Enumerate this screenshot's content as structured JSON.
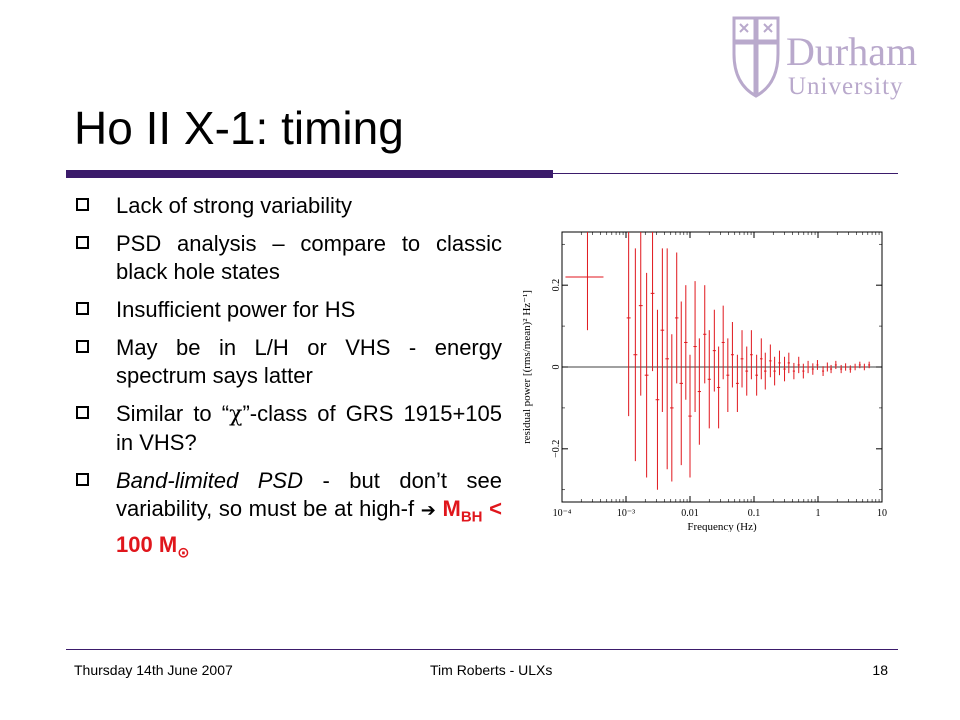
{
  "logo": {
    "line1": "Durham",
    "line2": "University"
  },
  "title": "Ho II X-1: timing",
  "bullets": {
    "b1": "Lack of strong variability",
    "b2": "PSD analysis – compare to classic black hole states",
    "b3": "Insufficient power for HS",
    "b4": "May be in L/H or VHS - energy spectrum says latter",
    "b5_pre": "Similar to “",
    "b5_chi": "χ",
    "b5_post": "”-class of GRS 1915+105 in VHS?",
    "b6_italic": "Band-limited PSD",
    "b6_rest": " - but don’t see variability, so must be at high-f ",
    "b6_arrow": "➔",
    "b6_m": "M",
    "b6_bh": "BH",
    "b6_lt": " < 100 M",
    "b6_sun": "⊙"
  },
  "chart_data": {
    "type": "scatter",
    "xlabel": "Frequency (Hz)",
    "ylabel": "residual power [(rms/mean)² Hz⁻¹]",
    "xscale": "log",
    "xlim": [
      0.0001,
      10
    ],
    "ylim": [
      -0.33,
      0.33
    ],
    "xticks": [
      "10⁻⁴",
      "10⁻³",
      "0.01",
      "0.1",
      "1",
      "10"
    ],
    "yticks": [
      "0.2",
      "0",
      "−0.2"
    ],
    "color": "#e0161c",
    "points": [
      {
        "x": 0.00025,
        "y": 0.22,
        "err": 0.13
      },
      {
        "x": 0.0011,
        "y": 0.12,
        "err": 0.24
      },
      {
        "x": 0.0014,
        "y": 0.03,
        "err": 0.26
      },
      {
        "x": 0.0017,
        "y": 0.15,
        "err": 0.22
      },
      {
        "x": 0.0021,
        "y": -0.02,
        "err": 0.25
      },
      {
        "x": 0.0026,
        "y": 0.18,
        "err": 0.19
      },
      {
        "x": 0.0031,
        "y": -0.08,
        "err": 0.22
      },
      {
        "x": 0.0037,
        "y": 0.09,
        "err": 0.2
      },
      {
        "x": 0.0044,
        "y": 0.02,
        "err": 0.27
      },
      {
        "x": 0.0052,
        "y": -0.1,
        "err": 0.18
      },
      {
        "x": 0.0062,
        "y": 0.12,
        "err": 0.16
      },
      {
        "x": 0.0073,
        "y": -0.04,
        "err": 0.2
      },
      {
        "x": 0.0086,
        "y": 0.06,
        "err": 0.14
      },
      {
        "x": 0.01,
        "y": -0.12,
        "err": 0.15
      },
      {
        "x": 0.012,
        "y": 0.05,
        "err": 0.16
      },
      {
        "x": 0.014,
        "y": -0.06,
        "err": 0.13
      },
      {
        "x": 0.017,
        "y": 0.08,
        "err": 0.12
      },
      {
        "x": 0.02,
        "y": -0.03,
        "err": 0.12
      },
      {
        "x": 0.024,
        "y": 0.04,
        "err": 0.1
      },
      {
        "x": 0.028,
        "y": -0.05,
        "err": 0.1
      },
      {
        "x": 0.033,
        "y": 0.06,
        "err": 0.09
      },
      {
        "x": 0.039,
        "y": -0.02,
        "err": 0.09
      },
      {
        "x": 0.046,
        "y": 0.03,
        "err": 0.08
      },
      {
        "x": 0.055,
        "y": -0.04,
        "err": 0.07
      },
      {
        "x": 0.065,
        "y": 0.02,
        "err": 0.07
      },
      {
        "x": 0.077,
        "y": -0.01,
        "err": 0.06
      },
      {
        "x": 0.091,
        "y": 0.03,
        "err": 0.06
      },
      {
        "x": 0.11,
        "y": -0.02,
        "err": 0.05
      },
      {
        "x": 0.13,
        "y": 0.02,
        "err": 0.05
      },
      {
        "x": 0.15,
        "y": -0.01,
        "err": 0.045
      },
      {
        "x": 0.18,
        "y": 0.015,
        "err": 0.04
      },
      {
        "x": 0.21,
        "y": -0.01,
        "err": 0.035
      },
      {
        "x": 0.25,
        "y": 0.01,
        "err": 0.03
      },
      {
        "x": 0.3,
        "y": -0.005,
        "err": 0.03
      },
      {
        "x": 0.35,
        "y": 0.01,
        "err": 0.025
      },
      {
        "x": 0.42,
        "y": -0.01,
        "err": 0.02
      },
      {
        "x": 0.5,
        "y": 0.005,
        "err": 0.02
      },
      {
        "x": 0.59,
        "y": -0.01,
        "err": 0.018
      },
      {
        "x": 0.7,
        "y": 0.0,
        "err": 0.015
      },
      {
        "x": 0.83,
        "y": -0.005,
        "err": 0.014
      },
      {
        "x": 0.98,
        "y": 0.005,
        "err": 0.012
      },
      {
        "x": 1.2,
        "y": -0.01,
        "err": 0.012
      },
      {
        "x": 1.4,
        "y": 0.0,
        "err": 0.011
      },
      {
        "x": 1.6,
        "y": -0.005,
        "err": 0.01
      },
      {
        "x": 1.9,
        "y": 0.005,
        "err": 0.01
      },
      {
        "x": 2.3,
        "y": -0.005,
        "err": 0.01
      },
      {
        "x": 2.7,
        "y": 0.0,
        "err": 0.009
      },
      {
        "x": 3.2,
        "y": -0.005,
        "err": 0.009
      },
      {
        "x": 3.8,
        "y": 0.0,
        "err": 0.008
      },
      {
        "x": 4.5,
        "y": 0.005,
        "err": 0.008
      },
      {
        "x": 5.3,
        "y": 0.0,
        "err": 0.008
      },
      {
        "x": 6.3,
        "y": 0.005,
        "err": 0.008
      }
    ]
  },
  "footer": {
    "date": "Thursday 14th June 2007",
    "author": "Tim Roberts - ULXs",
    "page": "18"
  }
}
